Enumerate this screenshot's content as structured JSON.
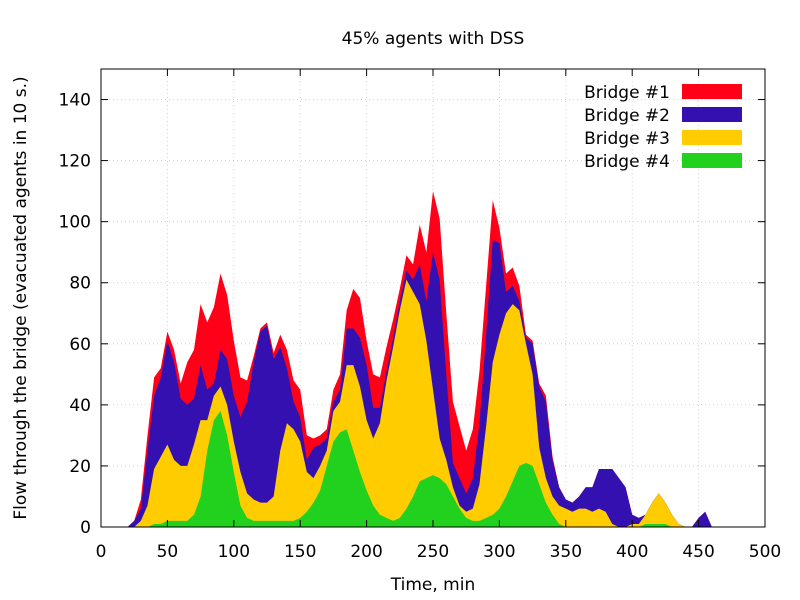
{
  "chart_data": {
    "type": "area",
    "stacked": true,
    "title": "45% agents with DSS",
    "xlabel": "Time, min",
    "ylabel": "Flow through the bridge (evacuated agents in 10 s.)",
    "xlim": [
      0,
      500
    ],
    "ylim": [
      0,
      150
    ],
    "xticks": [
      0,
      50,
      100,
      150,
      200,
      250,
      300,
      350,
      400,
      450,
      500
    ],
    "yticks": [
      0,
      20,
      40,
      60,
      80,
      100,
      120,
      140
    ],
    "grid": true,
    "legend_position": "top-right",
    "x": [
      0,
      5,
      10,
      15,
      20,
      25,
      30,
      35,
      40,
      45,
      50,
      55,
      60,
      65,
      70,
      75,
      80,
      85,
      90,
      95,
      100,
      105,
      110,
      115,
      120,
      125,
      130,
      135,
      140,
      145,
      150,
      155,
      160,
      165,
      170,
      175,
      180,
      185,
      190,
      195,
      200,
      205,
      210,
      215,
      220,
      225,
      230,
      235,
      240,
      245,
      250,
      255,
      260,
      265,
      270,
      275,
      280,
      285,
      290,
      295,
      300,
      305,
      310,
      315,
      320,
      325,
      330,
      335,
      340,
      345,
      350,
      355,
      360,
      365,
      370,
      375,
      380,
      385,
      390,
      395,
      400,
      405,
      410,
      415,
      420,
      425,
      430,
      435,
      440,
      445,
      450,
      455,
      460
    ],
    "series": [
      {
        "name": "Bridge #1",
        "color": "#ff0018",
        "values": [
          0,
          0,
          0,
          0,
          0,
          0,
          3,
          5,
          6,
          3,
          3,
          4,
          5,
          14,
          16,
          20,
          22,
          25,
          25,
          21,
          18,
          13,
          7,
          2,
          1,
          1,
          2,
          4,
          6,
          7,
          9,
          8,
          3,
          3,
          3,
          4,
          5,
          6,
          13,
          13,
          8,
          11,
          10,
          8,
          6,
          4,
          5,
          5,
          13,
          16,
          20,
          20,
          20,
          20,
          17,
          14,
          16,
          17,
          16,
          13,
          5,
          6,
          6,
          5,
          1,
          1,
          1,
          2,
          1,
          0,
          0,
          0,
          0,
          0,
          0,
          0,
          0,
          0,
          0,
          0,
          0,
          0,
          0,
          0,
          0,
          0,
          0,
          0,
          0,
          0,
          0,
          0,
          0
        ]
      },
      {
        "name": "Bridge #2",
        "color": "#3510b0",
        "values": [
          0,
          0,
          0,
          0,
          0,
          2,
          4,
          18,
          24,
          26,
          34,
          32,
          22,
          20,
          15,
          18,
          10,
          4,
          12,
          15,
          15,
          18,
          30,
          45,
          56,
          58,
          45,
          34,
          18,
          9,
          8,
          4,
          10,
          7,
          4,
          3,
          4,
          12,
          12,
          16,
          18,
          10,
          5,
          3,
          3,
          3,
          3,
          4,
          13,
          13,
          45,
          52,
          28,
          8,
          9,
          6,
          10,
          20,
          30,
          40,
          30,
          7,
          6,
          3,
          2,
          10,
          20,
          25,
          12,
          6,
          3,
          3,
          4,
          7,
          8,
          13,
          14,
          18,
          16,
          13,
          3,
          2,
          0,
          0,
          0,
          0,
          0,
          0,
          0,
          0,
          3,
          5,
          0
        ]
      },
      {
        "name": "Bridge #3",
        "color": "#ffcc00",
        "values": [
          0,
          0,
          0,
          0,
          0,
          0,
          2,
          7,
          18,
          22,
          25,
          20,
          18,
          18,
          23,
          25,
          10,
          8,
          8,
          10,
          10,
          11,
          8,
          7,
          6,
          6,
          8,
          23,
          32,
          30,
          25,
          13,
          8,
          8,
          5,
          10,
          10,
          21,
          28,
          28,
          23,
          22,
          30,
          45,
          57,
          68,
          75,
          67,
          58,
          45,
          28,
          13,
          8,
          3,
          1,
          2,
          4,
          12,
          30,
          50,
          57,
          60,
          58,
          51,
          39,
          30,
          12,
          8,
          6,
          6,
          6,
          5,
          6,
          6,
          5,
          6,
          5,
          1,
          0,
          0,
          1,
          1,
          3,
          7,
          10,
          7,
          4,
          1,
          0,
          0,
          0,
          0,
          0
        ]
      },
      {
        "name": "Bridge #4",
        "color": "#22d11e",
        "values": [
          0,
          0,
          0,
          0,
          0,
          0,
          0,
          0,
          1,
          1,
          2,
          2,
          2,
          2,
          4,
          10,
          25,
          35,
          38,
          30,
          18,
          7,
          3,
          2,
          2,
          2,
          2,
          2,
          2,
          2,
          3,
          5,
          8,
          12,
          20,
          28,
          31,
          32,
          25,
          18,
          12,
          7,
          4,
          3,
          2,
          3,
          6,
          10,
          15,
          16,
          17,
          16,
          14,
          10,
          6,
          3,
          2,
          2,
          3,
          4,
          6,
          10,
          15,
          20,
          21,
          20,
          14,
          8,
          4,
          1,
          0,
          0,
          0,
          0,
          0,
          0,
          0,
          0,
          0,
          0,
          0,
          0,
          1,
          1,
          1,
          1,
          0,
          0,
          0,
          0,
          0,
          0,
          0
        ]
      }
    ]
  }
}
